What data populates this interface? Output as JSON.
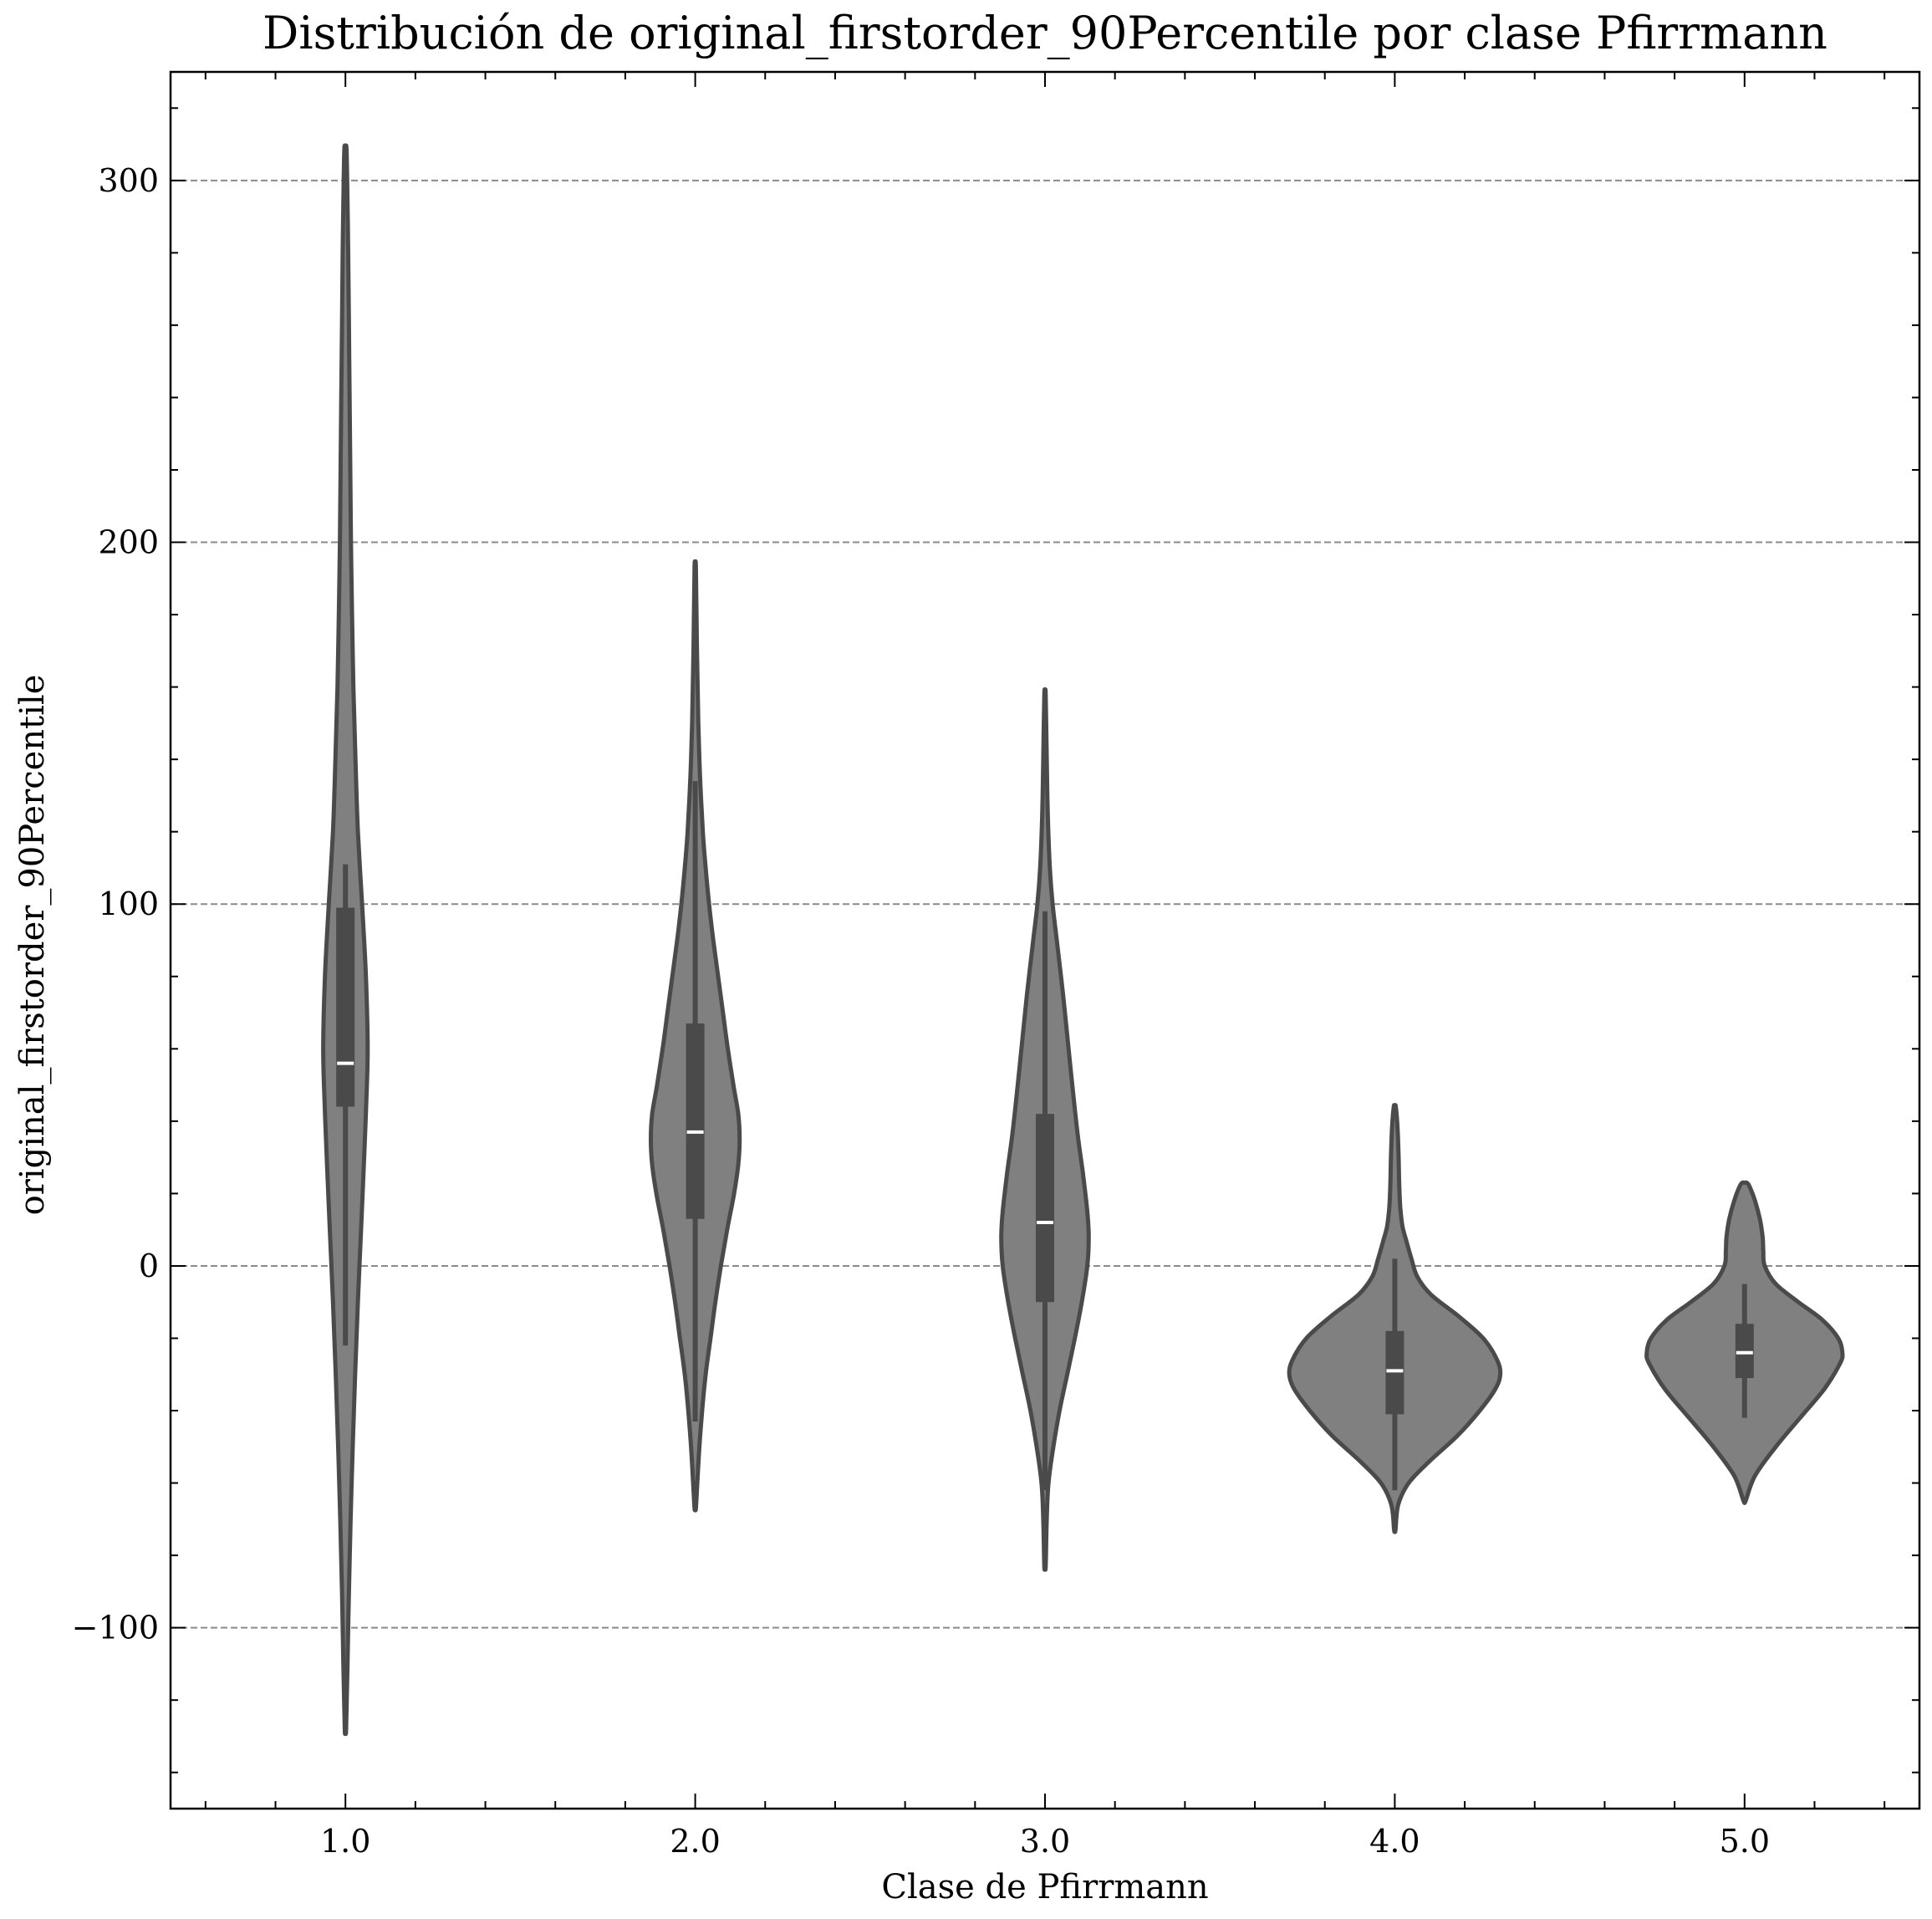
{
  "chart_data": {
    "type": "violin",
    "title": "Distribución de original_firstorder_90Percentile por clase Pfirrmann",
    "xlabel": "Clase de Pfirrmann",
    "ylabel": "original_firstorder_90Percentile",
    "categories": [
      "1.0",
      "2.0",
      "3.0",
      "4.0",
      "5.0"
    ],
    "ylim": [
      -150,
      330
    ],
    "yticks": [
      -100,
      0,
      100,
      200,
      300
    ],
    "ytick_labels": [
      "−100",
      "0",
      "100",
      "200",
      "300"
    ],
    "grid": "horizontal-dashed",
    "colors": {
      "fill": "#808080",
      "edge": "#4a4a4a",
      "box": "#4a4a4a",
      "median": "#ffffff",
      "grid": "#8a8a8a"
    },
    "violins": [
      {
        "category": "1.0",
        "profile": [
          [
            -128,
            0.2
          ],
          [
            -110,
            0.6
          ],
          [
            -90,
            1.0
          ],
          [
            -70,
            1.5
          ],
          [
            -50,
            2.1
          ],
          [
            -30,
            2.8
          ],
          [
            -10,
            3.6
          ],
          [
            10,
            4.5
          ],
          [
            30,
            5.4
          ],
          [
            45,
            6.0
          ],
          [
            60,
            6.4
          ],
          [
            80,
            5.9
          ],
          [
            100,
            4.8
          ],
          [
            120,
            3.6
          ],
          [
            140,
            2.9
          ],
          [
            160,
            2.3
          ],
          [
            180,
            1.9
          ],
          [
            200,
            1.6
          ],
          [
            220,
            1.4
          ],
          [
            240,
            1.2
          ],
          [
            260,
            1.0
          ],
          [
            280,
            0.8
          ],
          [
            300,
            0.5
          ],
          [
            309,
            0.3
          ]
        ],
        "box": {
          "q1": 44,
          "median": 56,
          "q3": 99,
          "whisker_low": -22,
          "whisker_high": 111
        }
      },
      {
        "category": "2.0",
        "profile": [
          [
            -67,
            0.2
          ],
          [
            -60,
            0.6
          ],
          [
            -50,
            1.2
          ],
          [
            -40,
            2.0
          ],
          [
            -30,
            3.0
          ],
          [
            -20,
            4.4
          ],
          [
            -10,
            5.8
          ],
          [
            0,
            7.4
          ],
          [
            10,
            9.2
          ],
          [
            20,
            11.2
          ],
          [
            28,
            12.4
          ],
          [
            35,
            12.8
          ],
          [
            42,
            12.4
          ],
          [
            50,
            11.0
          ],
          [
            60,
            9.4
          ],
          [
            70,
            8.0
          ],
          [
            80,
            6.6
          ],
          [
            90,
            5.2
          ],
          [
            100,
            4.0
          ],
          [
            110,
            3.0
          ],
          [
            120,
            2.2
          ],
          [
            135,
            1.4
          ],
          [
            150,
            0.9
          ],
          [
            170,
            0.5
          ],
          [
            193,
            0.2
          ]
        ],
        "box": {
          "q1": 13,
          "median": 37,
          "q3": 67,
          "whisker_low": -43,
          "whisker_high": 134
        }
      },
      {
        "category": "3.0",
        "profile": [
          [
            -83,
            0.2
          ],
          [
            -70,
            0.5
          ],
          [
            -60,
            1.0
          ],
          [
            -50,
            2.4
          ],
          [
            -40,
            4.2
          ],
          [
            -30,
            6.4
          ],
          [
            -20,
            8.6
          ],
          [
            -10,
            10.6
          ],
          [
            0,
            12.2
          ],
          [
            8,
            12.6
          ],
          [
            15,
            12.2
          ],
          [
            25,
            11.0
          ],
          [
            35,
            9.6
          ],
          [
            45,
            8.4
          ],
          [
            60,
            6.8
          ],
          [
            75,
            5.2
          ],
          [
            90,
            3.4
          ],
          [
            100,
            2.2
          ],
          [
            110,
            1.4
          ],
          [
            125,
            0.8
          ],
          [
            140,
            0.5
          ],
          [
            158,
            0.2
          ]
        ],
        "box": {
          "q1": -10,
          "median": 12,
          "q3": 42,
          "whisker_low": -62,
          "whisker_high": 98
        }
      },
      {
        "category": "4.0",
        "profile": [
          [
            -73,
            0.2
          ],
          [
            -66,
            1.0
          ],
          [
            -60,
            4.0
          ],
          [
            -54,
            10.0
          ],
          [
            -47,
            18.0
          ],
          [
            -40,
            24.5
          ],
          [
            -34,
            29.0
          ],
          [
            -30,
            30.4
          ],
          [
            -26,
            29.5
          ],
          [
            -20,
            25.5
          ],
          [
            -14,
            18.5
          ],
          [
            -8,
            10.5
          ],
          [
            -3,
            6.5
          ],
          [
            2,
            4.8
          ],
          [
            7,
            3.3
          ],
          [
            11,
            2.2
          ],
          [
            16,
            1.6
          ],
          [
            22,
            1.3
          ],
          [
            30,
            1.1
          ],
          [
            38,
            0.8
          ],
          [
            44,
            0.3
          ]
        ],
        "box": {
          "q1": -41,
          "median": -29,
          "q3": -18,
          "whisker_low": -62,
          "whisker_high": 2
        }
      },
      {
        "category": "5.0",
        "profile": [
          [
            -65,
            0.3
          ],
          [
            -58,
            3.0
          ],
          [
            -50,
            9.0
          ],
          [
            -42,
            16.0
          ],
          [
            -34,
            23.0
          ],
          [
            -27,
            27.5
          ],
          [
            -24,
            28.2
          ],
          [
            -20,
            27.0
          ],
          [
            -15,
            22.5
          ],
          [
            -10,
            15.5
          ],
          [
            -5,
            9.0
          ],
          [
            0,
            5.8
          ],
          [
            4,
            5.4
          ],
          [
            8,
            5.2
          ],
          [
            13,
            4.4
          ],
          [
            18,
            3.0
          ],
          [
            22,
            1.4
          ],
          [
            23,
            0.6
          ]
        ],
        "box": {
          "q1": -31,
          "median": -24,
          "q3": -16,
          "whisker_low": -42,
          "whisker_high": -5
        }
      }
    ]
  }
}
